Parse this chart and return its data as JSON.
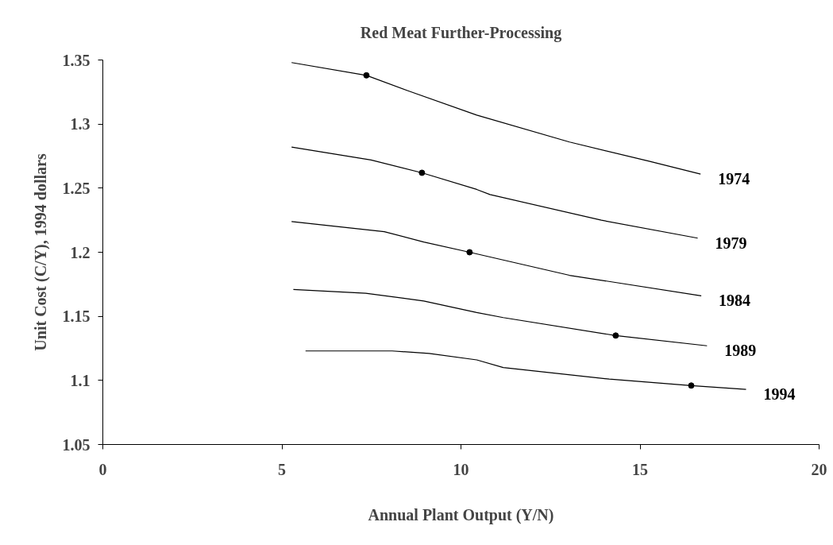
{
  "chart_data": {
    "type": "line",
    "title": "Red Meat Further-Processing",
    "xlabel": "Annual Plant Output (Y/N)",
    "ylabel": "Unit Cost (C/Y), 1994 dollars",
    "xlim": [
      0,
      20
    ],
    "xticks": [
      0,
      5,
      10,
      15,
      20
    ],
    "ylim": [
      1.05,
      1.35
    ],
    "yticks": [
      1.05,
      1.1,
      1.15,
      1.2,
      1.25,
      1.3,
      1.35
    ],
    "grid": false,
    "marker": "none",
    "line_style": "solid",
    "series": [
      {
        "name": "1974",
        "color": "#000000",
        "x": [
          5.27,
          7.36,
          8.52,
          10.44,
          13.03,
          15.25,
          16.69
        ],
        "values": [
          1.348,
          1.338,
          1.326,
          1.307,
          1.286,
          1.271,
          1.261
        ]
      },
      {
        "name": "1979",
        "color": "#000000",
        "x": [
          5.27,
          7.49,
          8.91,
          10.44,
          10.81,
          13.92,
          16.61
        ],
        "values": [
          1.282,
          1.272,
          1.262,
          1.249,
          1.245,
          1.225,
          1.211
        ]
      },
      {
        "name": "1984",
        "color": "#000000",
        "x": [
          5.27,
          7.86,
          8.96,
          10.24,
          13.03,
          16.71
        ],
        "values": [
          1.224,
          1.216,
          1.208,
          1.2,
          1.182,
          1.166
        ]
      },
      {
        "name": "1989",
        "color": "#000000",
        "x": [
          5.32,
          7.34,
          8.96,
          10.44,
          11.18,
          14.32,
          16.87
        ],
        "values": [
          1.171,
          1.168,
          1.162,
          1.153,
          1.149,
          1.135,
          1.127
        ]
      },
      {
        "name": "1994",
        "color": "#000000",
        "x": [
          5.66,
          8.08,
          9.11,
          10.44,
          11.18,
          14.14,
          16.43,
          17.96
        ],
        "values": [
          1.123,
          1.123,
          1.121,
          1.116,
          1.11,
          1.101,
          1.096,
          1.093
        ]
      },
      {
        "type": "scatter",
        "marker": "circle",
        "color": "#000000",
        "x": [
          7.36,
          8.91,
          10.24,
          14.32,
          16.43
        ],
        "values": [
          1.338,
          1.262,
          1.2,
          1.135,
          1.096
        ]
      }
    ]
  }
}
